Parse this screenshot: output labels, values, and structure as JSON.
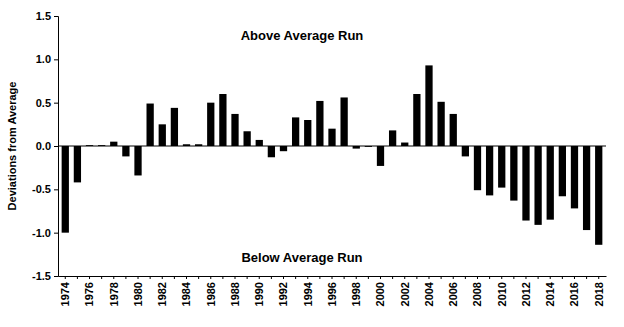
{
  "chart_data": {
    "type": "bar",
    "y_label": "Deviations from Average",
    "annotations": [
      "Above Average Run",
      "Below Average Run"
    ],
    "categories": [
      "1974",
      null,
      "1976",
      null,
      "1978",
      null,
      "1980",
      null,
      "1982",
      null,
      "1984",
      null,
      "1986",
      null,
      "1988",
      null,
      "1990",
      null,
      "1992",
      null,
      "1994",
      null,
      "1996",
      null,
      "1998",
      null,
      "2000",
      null,
      "2002",
      null,
      "2004",
      null,
      "2006",
      null,
      "2008",
      null,
      "2010",
      null,
      "2012",
      null,
      "2014",
      null,
      "2016",
      null,
      "2018"
    ],
    "values": [
      -1.0,
      -0.42,
      0.01,
      0.01,
      0.05,
      -0.12,
      -0.34,
      0.49,
      0.25,
      0.44,
      0.02,
      0.02,
      0.5,
      0.6,
      0.37,
      0.17,
      0.07,
      -0.13,
      -0.06,
      0.33,
      0.3,
      0.52,
      0.2,
      0.56,
      -0.03,
      -0.01,
      -0.23,
      0.18,
      0.04,
      0.6,
      0.93,
      0.51,
      0.37,
      -0.12,
      -0.51,
      -0.57,
      -0.48,
      -0.63,
      -0.86,
      -0.91,
      -0.85,
      -0.58,
      -0.72,
      -0.97,
      -1.14
    ],
    "color": "#000000",
    "ylim": [
      -1.5,
      1.5
    ],
    "yticks": [
      -1.5,
      {
        "value": -1,
        "label": "-1.0"
      },
      -0.5,
      {
        "value": 0,
        "label": "0.0"
      },
      0.5,
      {
        "value": 1,
        "label": "1.0"
      },
      1.5
    ],
    "grid": false
  }
}
